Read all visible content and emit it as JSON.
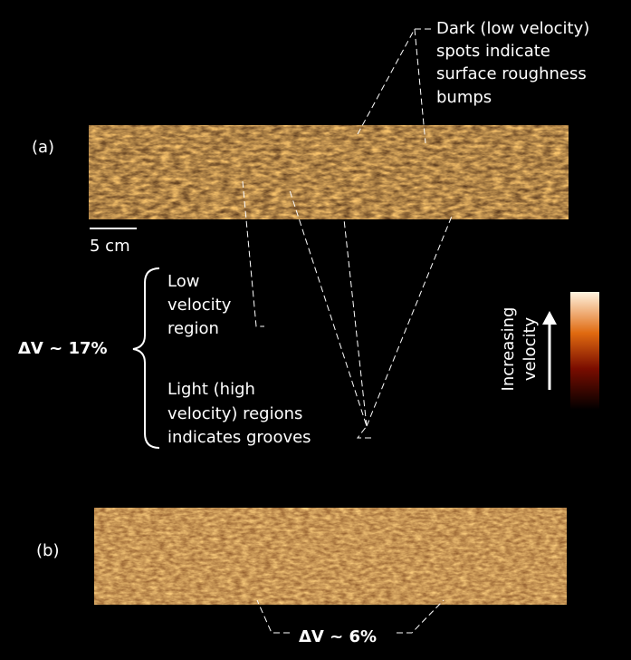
{
  "annotation_top": {
    "lines": [
      "Dark (low velocity)",
      "spots indicate",
      "surface roughness",
      "bumps"
    ]
  },
  "panel_a": {
    "label": "(a)",
    "scale": "5 cm"
  },
  "low_region": {
    "lines": [
      "Low",
      "velocity",
      "region"
    ]
  },
  "delta_a": "ΔV ~ 17%",
  "light_region": {
    "lines": [
      "Light (high",
      "velocity) regions",
      "indicates grooves"
    ]
  },
  "colorbar": {
    "lines": [
      "Increasing",
      "velocity"
    ]
  },
  "panel_b": {
    "label": "(b)"
  },
  "delta_b": "ΔV ~ 6%"
}
